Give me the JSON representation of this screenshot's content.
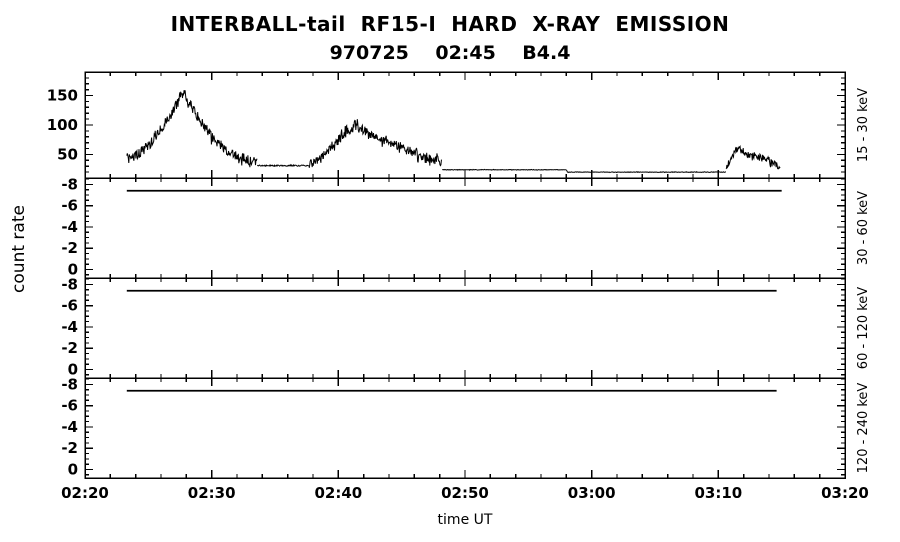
{
  "figure": {
    "title": "INTERBALL-tail  RF15-I  HARD  X-RAY  EMISSION",
    "subtitle": "970725    02:45    B4.4",
    "xlabel": "time UT",
    "ylabel": "count rate"
  },
  "chart_data": {
    "type": "line",
    "title": "INTERBALL-tail  RF15-I  HARD  X-RAY  EMISSION",
    "subtitle": "970725    02:45    B4.4",
    "xlabel": "time UT",
    "ylabel": "count rate",
    "colors": {
      "background": "#ffffff",
      "line": "#000000"
    },
    "x_axis": {
      "range_minutes": [
        140,
        200
      ],
      "major_ticks": [
        {
          "t": 140,
          "label": "02:20"
        },
        {
          "t": 150,
          "label": "02:30"
        },
        {
          "t": 160,
          "label": "02:40"
        },
        {
          "t": 170,
          "label": "02:50"
        },
        {
          "t": 180,
          "label": "03:00"
        },
        {
          "t": 190,
          "label": "03:10"
        },
        {
          "t": 200,
          "label": "03:20"
        }
      ],
      "minor_step": 2
    },
    "panels": [
      {
        "name": "15-30keV",
        "label": "15 - 30 keV",
        "ylim_bottom": 10,
        "ylim_top": 190,
        "yticks": [
          {
            "v": 50,
            "label": "50"
          },
          {
            "v": 100,
            "label": "100"
          },
          {
            "v": 150,
            "label": "150"
          }
        ],
        "minor_step": 10,
        "segments": [
          {
            "name": "burst-1",
            "noise": 8,
            "keypoints": [
              [
                143.3,
                42
              ],
              [
                143.8,
                46
              ],
              [
                144.3,
                52
              ],
              [
                144.8,
                60
              ],
              [
                145.3,
                72
              ],
              [
                145.8,
                88
              ],
              [
                146.3,
                103
              ],
              [
                146.8,
                118
              ],
              [
                147.2,
                135
              ],
              [
                147.5,
                150
              ],
              [
                147.8,
                155
              ],
              [
                148.1,
                145
              ],
              [
                148.5,
                128
              ],
              [
                149,
                110
              ],
              [
                149.5,
                95
              ],
              [
                150,
                80
              ],
              [
                150.5,
                68
              ],
              [
                151,
                59
              ],
              [
                151.5,
                52
              ],
              [
                152.2,
                46
              ],
              [
                153,
                40
              ],
              [
                153.6,
                35
              ]
            ]
          },
          {
            "name": "interflare-level",
            "noise": 1,
            "keypoints": [
              [
                153.6,
                31
              ],
              [
                157.7,
                31
              ]
            ]
          },
          {
            "name": "burst-2",
            "noise": 8,
            "keypoints": [
              [
                157.7,
                33
              ],
              [
                158.2,
                40
              ],
              [
                158.8,
                50
              ],
              [
                159.4,
                62
              ],
              [
                160,
                74
              ],
              [
                160.6,
                86
              ],
              [
                161,
                95
              ],
              [
                161.3,
                100
              ],
              [
                161.7,
                94
              ],
              [
                162.2,
                88
              ],
              [
                162.8,
                82
              ],
              [
                163.5,
                76
              ],
              [
                164.2,
                70
              ],
              [
                165,
                62
              ],
              [
                165.8,
                55
              ],
              [
                166.6,
                48
              ],
              [
                167.4,
                43
              ],
              [
                168.2,
                38
              ]
            ]
          },
          {
            "name": "quiet-level",
            "noise": 0.4,
            "keypoints": [
              [
                168.2,
                24
              ],
              [
                178,
                24
              ],
              [
                178.1,
                20
              ],
              [
                190.6,
                20
              ]
            ]
          },
          {
            "name": "burst-3",
            "noise": 6,
            "keypoints": [
              [
                190.6,
                28
              ],
              [
                191,
                42
              ],
              [
                191.3,
                55
              ],
              [
                191.6,
                60
              ],
              [
                192,
                54
              ],
              [
                192.4,
                50
              ],
              [
                192.9,
                48
              ],
              [
                193.4,
                44
              ],
              [
                193.9,
                40
              ],
              [
                194.4,
                34
              ],
              [
                194.9,
                30
              ]
            ]
          }
        ]
      },
      {
        "name": "30-60keV",
        "label": "30 - 60 keV",
        "ylim_bottom": 0.8,
        "ylim_top": -8.6,
        "yticks": [
          {
            "v": -8,
            "label": "-8"
          },
          {
            "v": -6,
            "label": "-6"
          },
          {
            "v": -4,
            "label": "-4"
          },
          {
            "v": -2,
            "label": "-2"
          },
          {
            "v": 0,
            "label": "0"
          }
        ],
        "minor_step": 0.5,
        "flat_line": {
          "value": -7.4,
          "t_start": 143.3,
          "t_end": 195.0
        }
      },
      {
        "name": "60-120keV",
        "label": "60 - 120 keV",
        "ylim_bottom": 0.8,
        "ylim_top": -8.6,
        "yticks": [
          {
            "v": -8,
            "label": "-8"
          },
          {
            "v": -6,
            "label": "-6"
          },
          {
            "v": -4,
            "label": "-4"
          },
          {
            "v": -2,
            "label": "-2"
          },
          {
            "v": 0,
            "label": "0"
          }
        ],
        "minor_step": 0.5,
        "flat_line": {
          "value": -7.4,
          "t_start": 143.3,
          "t_end": 194.6
        }
      },
      {
        "name": "120-240keV",
        "label": "120 - 240 keV",
        "ylim_bottom": 0.8,
        "ylim_top": -8.6,
        "yticks": [
          {
            "v": -8,
            "label": "-8"
          },
          {
            "v": -6,
            "label": "-6"
          },
          {
            "v": -4,
            "label": "-4"
          },
          {
            "v": -2,
            "label": "-2"
          },
          {
            "v": 0,
            "label": "0"
          }
        ],
        "minor_step": 0.5,
        "flat_line": {
          "value": -7.4,
          "t_start": 143.3,
          "t_end": 194.6
        }
      }
    ]
  }
}
